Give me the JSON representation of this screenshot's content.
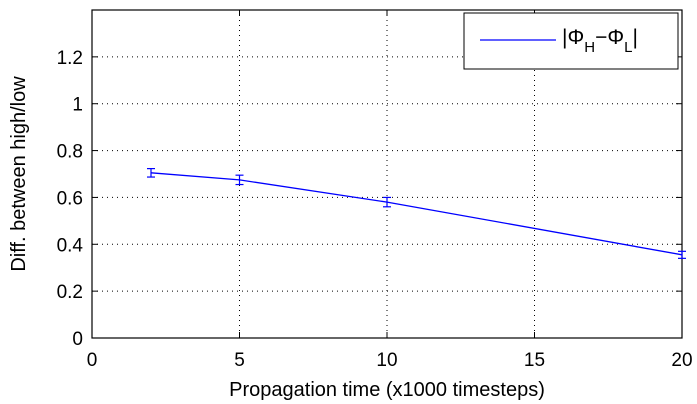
{
  "chart_data": {
    "type": "line",
    "title": "",
    "xlabel": "Propagation time (x1000 timesteps)",
    "ylabel": "Diff. between high/low",
    "xlim": [
      0,
      20
    ],
    "ylim": [
      0,
      1.4
    ],
    "xticks": [
      "0",
      "5",
      "10",
      "15",
      "20"
    ],
    "yticks": [
      "0",
      "0.2",
      "0.4",
      "0.6",
      "0.8",
      "1",
      "1.2"
    ],
    "grid": true,
    "grid_style": "dotted",
    "legend_position": "top-right",
    "series": [
      {
        "name": "|ΦH−ΦL|",
        "color": "#0000ff",
        "x": [
          2,
          5,
          10,
          20
        ],
        "y": [
          0.705,
          0.675,
          0.58,
          0.355
        ],
        "error": [
          0.018,
          0.02,
          0.02,
          0.015
        ]
      }
    ]
  },
  "legend": {
    "label_prefix": "|Φ",
    "label_sub1": "H",
    "label_mid": "−Φ",
    "label_sub2": "L",
    "label_suffix": "|"
  }
}
